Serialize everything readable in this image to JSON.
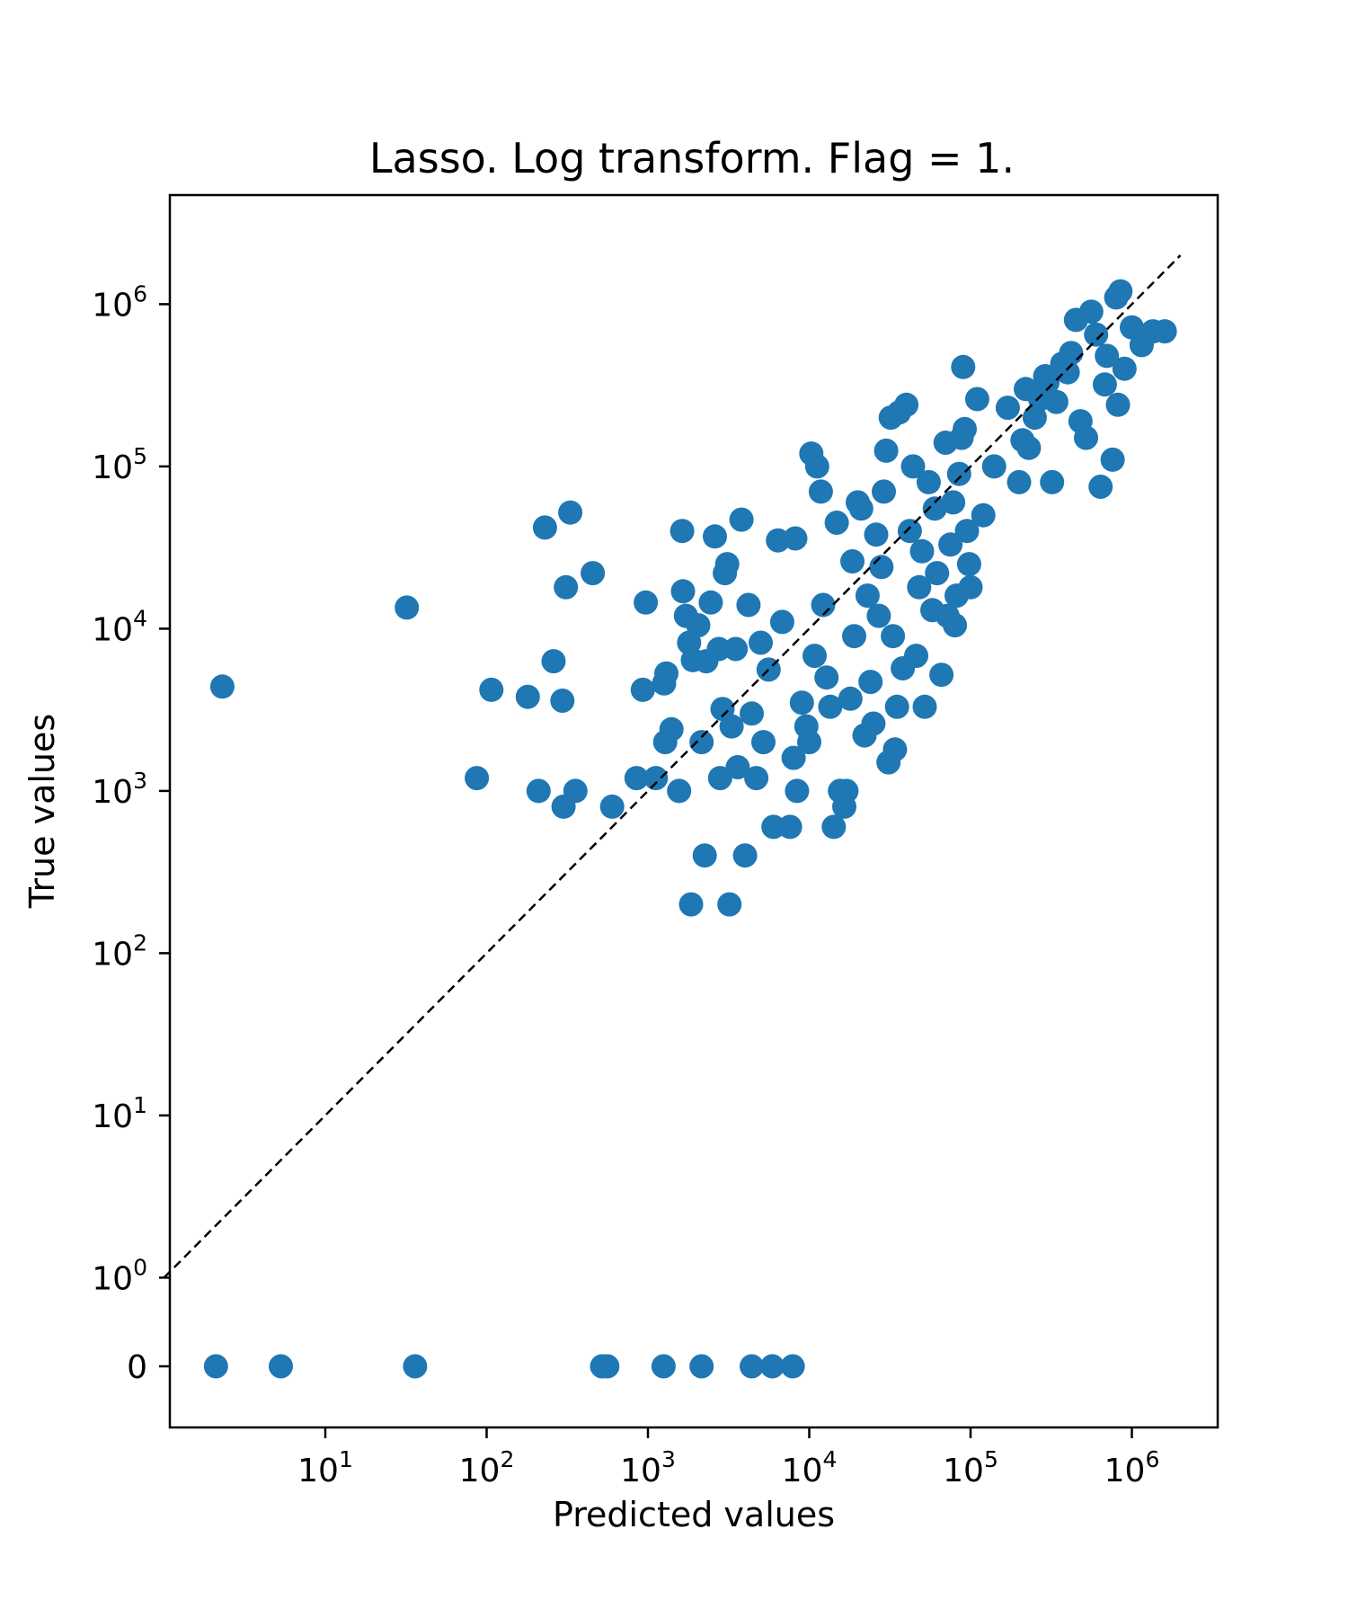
{
  "chart_data": {
    "type": "scatter",
    "title": "Lasso. Log transform. Flag = 1.",
    "xlabel": "Predicted values",
    "ylabel": "True values",
    "x_scale": "symlog",
    "y_scale": "symlog",
    "xlim": [
      1,
      2000000
    ],
    "ylim": [
      -0.5,
      2500000
    ],
    "x_ticks": [
      {
        "base": "10",
        "exp": "1",
        "value": 10
      },
      {
        "base": "10",
        "exp": "2",
        "value": 100
      },
      {
        "base": "10",
        "exp": "3",
        "value": 1000
      },
      {
        "base": "10",
        "exp": "4",
        "value": 10000
      },
      {
        "base": "10",
        "exp": "5",
        "value": 100000
      },
      {
        "base": "10",
        "exp": "6",
        "value": 1000000
      }
    ],
    "y_ticks": [
      {
        "base": "0",
        "exp": "",
        "value": 0
      },
      {
        "base": "10",
        "exp": "0",
        "value": 1
      },
      {
        "base": "10",
        "exp": "1",
        "value": 10
      },
      {
        "base": "10",
        "exp": "2",
        "value": 100
      },
      {
        "base": "10",
        "exp": "3",
        "value": 1000
      },
      {
        "base": "10",
        "exp": "4",
        "value": 10000
      },
      {
        "base": "10",
        "exp": "5",
        "value": 100000
      },
      {
        "base": "10",
        "exp": "6",
        "value": 1000000
      }
    ],
    "grid": false,
    "marker_color": "#1f77b4",
    "reference_line": {
      "style": "dashed",
      "color": "#000000",
      "description": "y = x"
    },
    "points": [
      [
        2.1,
        0
      ],
      [
        5.3,
        0
      ],
      [
        36,
        0
      ],
      [
        520,
        0
      ],
      [
        560,
        0
      ],
      [
        1250,
        0
      ],
      [
        2150,
        0
      ],
      [
        4400,
        0
      ],
      [
        5900,
        0
      ],
      [
        7900,
        0
      ],
      [
        2.3,
        4400
      ],
      [
        32,
        13500
      ],
      [
        87,
        1200
      ],
      [
        107,
        4200
      ],
      [
        180,
        3800
      ],
      [
        210,
        1000
      ],
      [
        230,
        42000
      ],
      [
        260,
        6300
      ],
      [
        295,
        3600
      ],
      [
        300,
        800
      ],
      [
        310,
        18000
      ],
      [
        330,
        52000
      ],
      [
        355,
        1000
      ],
      [
        455,
        22000
      ],
      [
        600,
        800
      ],
      [
        850,
        1200
      ],
      [
        930,
        4200
      ],
      [
        970,
        14500
      ],
      [
        1120,
        1200
      ],
      [
        1260,
        4600
      ],
      [
        1280,
        2000
      ],
      [
        1300,
        5300
      ],
      [
        1400,
        2400
      ],
      [
        1560,
        1000
      ],
      [
        1630,
        40000
      ],
      [
        1650,
        17000
      ],
      [
        1720,
        12000
      ],
      [
        1800,
        8200
      ],
      [
        1850,
        200
      ],
      [
        1900,
        6400
      ],
      [
        2050,
        10500
      ],
      [
        2150,
        2000
      ],
      [
        2250,
        400
      ],
      [
        2300,
        6300
      ],
      [
        2450,
        14500
      ],
      [
        2600,
        37000
      ],
      [
        2750,
        7500
      ],
      [
        2800,
        1200
      ],
      [
        2900,
        3200
      ],
      [
        3000,
        22000
      ],
      [
        3100,
        25000
      ],
      [
        3200,
        200
      ],
      [
        3300,
        2500
      ],
      [
        3500,
        7500
      ],
      [
        3600,
        1400
      ],
      [
        3800,
        47000
      ],
      [
        4000,
        400
      ],
      [
        4200,
        14000
      ],
      [
        4400,
        3000
      ],
      [
        4700,
        1200
      ],
      [
        5000,
        8200
      ],
      [
        5200,
        2000
      ],
      [
        5600,
        5600
      ],
      [
        6000,
        600
      ],
      [
        6400,
        35000
      ],
      [
        6800,
        11000
      ],
      [
        7600,
        600
      ],
      [
        8000,
        1600
      ],
      [
        8200,
        36000
      ],
      [
        8400,
        1000
      ],
      [
        9000,
        3500
      ],
      [
        9600,
        2500
      ],
      [
        10000,
        2000
      ],
      [
        10300,
        120000
      ],
      [
        10800,
        6800
      ],
      [
        11200,
        100000
      ],
      [
        11800,
        70000
      ],
      [
        12200,
        14000
      ],
      [
        12800,
        5000
      ],
      [
        13500,
        3300
      ],
      [
        14200,
        600
      ],
      [
        14800,
        45000
      ],
      [
        15500,
        1000
      ],
      [
        16500,
        800
      ],
      [
        17000,
        1000
      ],
      [
        18000,
        3700
      ],
      [
        18500,
        26000
      ],
      [
        19000,
        9000
      ],
      [
        20000,
        60000
      ],
      [
        21000,
        55000
      ],
      [
        22000,
        2200
      ],
      [
        23000,
        16000
      ],
      [
        24000,
        4700
      ],
      [
        25000,
        2600
      ],
      [
        26000,
        38000
      ],
      [
        27000,
        12000
      ],
      [
        28000,
        24000
      ],
      [
        29000,
        70000
      ],
      [
        30000,
        125000
      ],
      [
        31000,
        1500
      ],
      [
        32000,
        200000
      ],
      [
        33000,
        9000
      ],
      [
        34000,
        1800
      ],
      [
        35000,
        3300
      ],
      [
        36000,
        215000
      ],
      [
        38000,
        5700
      ],
      [
        40000,
        240000
      ],
      [
        42000,
        40000
      ],
      [
        44000,
        100000
      ],
      [
        46000,
        6800
      ],
      [
        48000,
        18000
      ],
      [
        50000,
        30000
      ],
      [
        52000,
        3300
      ],
      [
        55000,
        80000
      ],
      [
        58000,
        13000
      ],
      [
        60000,
        55000
      ],
      [
        62000,
        22000
      ],
      [
        66000,
        5200
      ],
      [
        70000,
        140000
      ],
      [
        72000,
        12000
      ],
      [
        75000,
        33000
      ],
      [
        78000,
        60000
      ],
      [
        80000,
        10500
      ],
      [
        82000,
        16000
      ],
      [
        85000,
        90000
      ],
      [
        88000,
        150000
      ],
      [
        90000,
        410000
      ],
      [
        92000,
        170000
      ],
      [
        95000,
        40000
      ],
      [
        98000,
        25000
      ],
      [
        100000,
        18000
      ],
      [
        110000,
        260000
      ],
      [
        120000,
        50000
      ],
      [
        140000,
        100000
      ],
      [
        170000,
        230000
      ],
      [
        200000,
        80000
      ],
      [
        210000,
        145000
      ],
      [
        220000,
        300000
      ],
      [
        230000,
        130000
      ],
      [
        250000,
        200000
      ],
      [
        270000,
        260000
      ],
      [
        290000,
        360000
      ],
      [
        300000,
        330000
      ],
      [
        320000,
        80000
      ],
      [
        340000,
        250000
      ],
      [
        370000,
        430000
      ],
      [
        400000,
        380000
      ],
      [
        420000,
        500000
      ],
      [
        450000,
        800000
      ],
      [
        480000,
        190000
      ],
      [
        520000,
        150000
      ],
      [
        560000,
        900000
      ],
      [
        600000,
        650000
      ],
      [
        640000,
        75000
      ],
      [
        680000,
        320000
      ],
      [
        700000,
        480000
      ],
      [
        760000,
        110000
      ],
      [
        800000,
        1100000
      ],
      [
        820000,
        240000
      ],
      [
        850000,
        1200000
      ],
      [
        900000,
        400000
      ],
      [
        1000000,
        720000
      ],
      [
        1150000,
        560000
      ],
      [
        1350000,
        680000
      ],
      [
        1600000,
        680000
      ]
    ]
  }
}
